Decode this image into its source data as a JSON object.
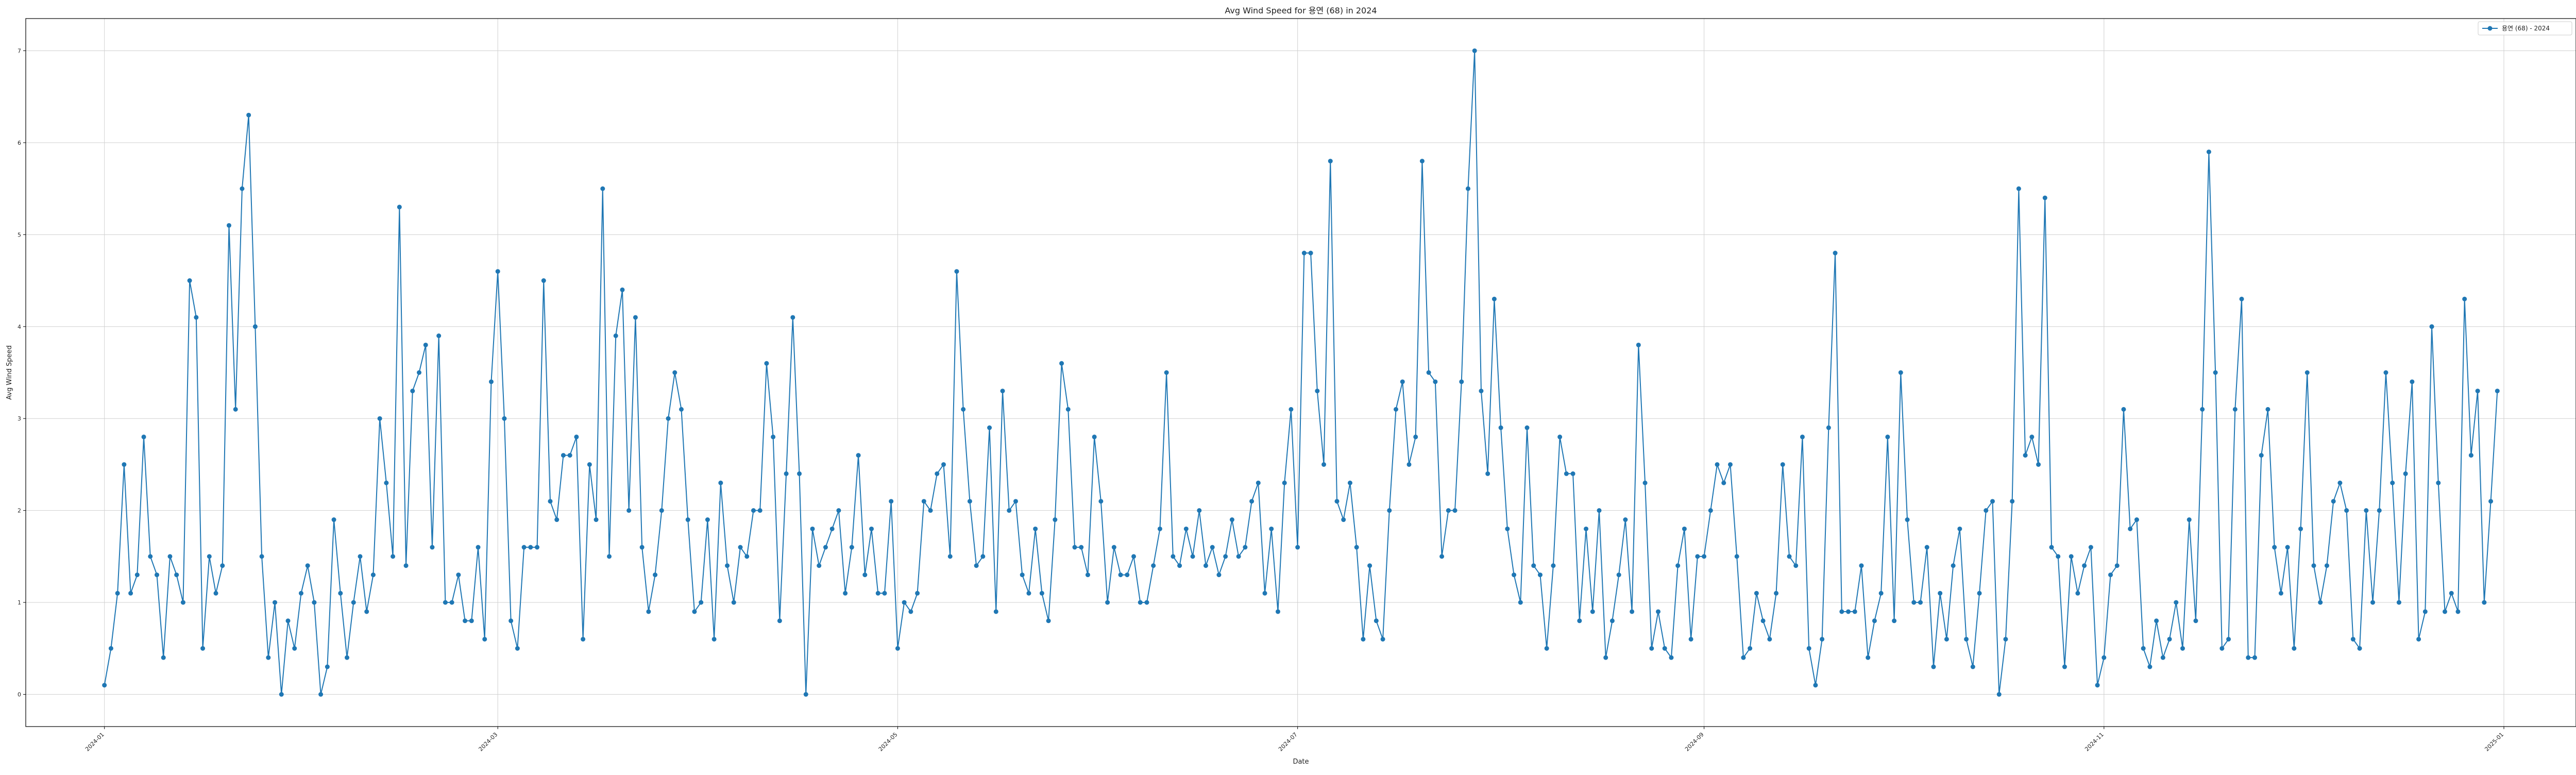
{
  "chart_data": {
    "type": "line",
    "title": "Avg Wind Speed for 용연 (68) in 2024",
    "xlabel": "Date",
    "ylabel": "Avg Wind Speed",
    "xlim": [
      "2023-12-20",
      "2025-01-12"
    ],
    "ylim": [
      -0.35,
      7.35
    ],
    "grid": true,
    "legend": "top-right",
    "x_start": "2024-01-01",
    "x_ticks": [
      {
        "date": "2024-01-01",
        "label": "2024-01"
      },
      {
        "date": "2024-03-01",
        "label": "2024-03"
      },
      {
        "date": "2024-05-01",
        "label": "2024-05"
      },
      {
        "date": "2024-07-01",
        "label": "2024-07"
      },
      {
        "date": "2024-09-01",
        "label": "2024-09"
      },
      {
        "date": "2024-11-01",
        "label": "2024-11"
      },
      {
        "date": "2025-01-01",
        "label": "2025-01"
      }
    ],
    "y_ticks": [
      0,
      1,
      2,
      3,
      4,
      5,
      6,
      7
    ],
    "series": [
      {
        "name": "용연 (68) - 2024",
        "color": "#1f77b4",
        "values": [
          0.1,
          0.5,
          1.1,
          2.5,
          1.1,
          1.3,
          2.8,
          1.5,
          1.3,
          0.4,
          1.5,
          1.3,
          1.0,
          4.5,
          4.1,
          0.5,
          1.5,
          1.1,
          1.4,
          5.1,
          3.1,
          5.5,
          6.3,
          4.0,
          1.5,
          0.4,
          1.0,
          0.0,
          0.8,
          0.5,
          1.1,
          1.4,
          1.0,
          0.0,
          0.3,
          1.9,
          1.1,
          0.4,
          1.0,
          1.5,
          0.9,
          1.3,
          3.0,
          2.3,
          1.5,
          5.3,
          1.4,
          3.3,
          3.5,
          3.8,
          1.6,
          3.9,
          1.0,
          1.0,
          1.3,
          0.8,
          0.8,
          1.6,
          0.6,
          3.4,
          4.6,
          3.0,
          0.8,
          0.5,
          1.6,
          1.6,
          1.6,
          4.5,
          2.1,
          1.9,
          2.6,
          2.6,
          2.8,
          0.6,
          2.5,
          1.9,
          5.5,
          1.5,
          3.9,
          4.4,
          2.0,
          4.1,
          1.6,
          0.9,
          1.3,
          2.0,
          3.0,
          3.5,
          3.1,
          1.9,
          0.9,
          1.0,
          1.9,
          0.6,
          2.3,
          1.4,
          1.0,
          1.6,
          1.5,
          2.0,
          2.0,
          3.6,
          2.8,
          0.8,
          2.4,
          4.1,
          2.4,
          0.0,
          1.8,
          1.4,
          1.6,
          1.8,
          2.0,
          1.1,
          1.6,
          2.6,
          1.3,
          1.8,
          1.1,
          1.1,
          2.1,
          0.5,
          1.0,
          0.9,
          1.1,
          2.1,
          2.0,
          2.4,
          2.5,
          1.5,
          4.6,
          3.1,
          2.1,
          1.4,
          1.5,
          2.9,
          0.9,
          3.3,
          2.0,
          2.1,
          1.3,
          1.1,
          1.8,
          1.1,
          0.8,
          1.9,
          3.6,
          3.1,
          1.6,
          1.6,
          1.3,
          2.8,
          2.1,
          1.0,
          1.6,
          1.3,
          1.3,
          1.5,
          1.0,
          1.0,
          1.4,
          1.8,
          3.5,
          1.5,
          1.4,
          1.8,
          1.5,
          2.0,
          1.4,
          1.6,
          1.3,
          1.5,
          1.9,
          1.5,
          1.6,
          2.1,
          2.3,
          1.1,
          1.8,
          0.9,
          2.3,
          3.1,
          1.6,
          4.8,
          4.8,
          3.3,
          2.5,
          5.8,
          2.1,
          1.9,
          2.3,
          1.6,
          0.6,
          1.4,
          0.8,
          0.6,
          2.0,
          3.1,
          3.4,
          2.5,
          2.8,
          5.8,
          3.5,
          3.4,
          1.5,
          2.0,
          2.0,
          3.4,
          5.5,
          7.0,
          3.3,
          2.4,
          4.3,
          2.9,
          1.8,
          1.3,
          1.0,
          2.9,
          1.4,
          1.3,
          0.5,
          1.4,
          2.8,
          2.4,
          2.4,
          0.8,
          1.8,
          0.9,
          2.0,
          0.4,
          0.8,
          1.3,
          1.9,
          0.9,
          3.8,
          2.3,
          0.5,
          0.9,
          0.5,
          0.4,
          1.4,
          1.8,
          0.6,
          1.5,
          1.5,
          2.0,
          2.5,
          2.3,
          2.5,
          1.5,
          0.4,
          0.5,
          1.1,
          0.8,
          0.6,
          1.1,
          2.5,
          1.5,
          1.4,
          2.8,
          0.5,
          0.1,
          0.6,
          2.9,
          4.8,
          0.9,
          0.9,
          0.9,
          1.4,
          0.4,
          0.8,
          1.1,
          2.8,
          0.8,
          3.5,
          1.9,
          1.0,
          1.0,
          1.6,
          0.3,
          1.1,
          0.6,
          1.4,
          1.8,
          0.6,
          0.3,
          1.1,
          2.0,
          2.1,
          0.0,
          0.6,
          2.1,
          5.5,
          2.6,
          2.8,
          2.5,
          5.4,
          1.6,
          1.5,
          0.3,
          1.5,
          1.1,
          1.4,
          1.6,
          0.1,
          0.4,
          1.3,
          1.4,
          3.1,
          1.8,
          1.9,
          0.5,
          0.3,
          0.8,
          0.4,
          0.6,
          1.0,
          0.5,
          1.9,
          0.8,
          3.1,
          5.9,
          3.5,
          0.5,
          0.6,
          3.1,
          4.3,
          0.4,
          0.4,
          2.6,
          3.1,
          1.6,
          1.1,
          1.6,
          0.5,
          1.8,
          3.5,
          1.4,
          1.0,
          1.4,
          2.1,
          2.3,
          2.0,
          0.6,
          0.5,
          2.0,
          1.0,
          2.0,
          3.5,
          2.3,
          1.0,
          2.4,
          3.4,
          0.6,
          0.9,
          4.0,
          2.3,
          0.9,
          1.1,
          0.9,
          4.3,
          2.6,
          3.3,
          1.0,
          2.1,
          3.3
        ]
      }
    ]
  }
}
